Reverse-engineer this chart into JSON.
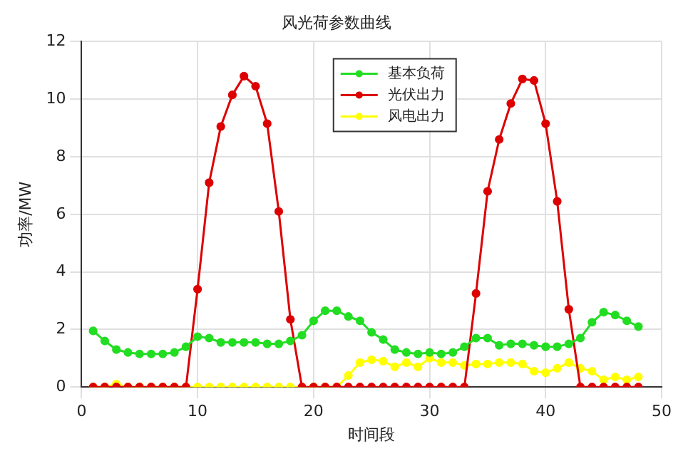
{
  "chart_data": {
    "type": "line",
    "title": "风光荷参数曲线",
    "xlabel": "时间段",
    "ylabel": "功率/MW",
    "x": [
      1,
      2,
      3,
      4,
      5,
      6,
      7,
      8,
      9,
      10,
      11,
      12,
      13,
      14,
      15,
      16,
      17,
      18,
      19,
      20,
      21,
      22,
      23,
      24,
      25,
      26,
      27,
      28,
      29,
      30,
      31,
      32,
      33,
      34,
      35,
      36,
      37,
      38,
      39,
      40,
      41,
      42,
      43,
      44,
      45,
      46,
      47,
      48
    ],
    "series": [
      {
        "name": "基本负荷",
        "color": "#22dd22",
        "values": [
          1.95,
          1.6,
          1.3,
          1.2,
          1.15,
          1.15,
          1.15,
          1.2,
          1.4,
          1.75,
          1.7,
          1.55,
          1.55,
          1.55,
          1.55,
          1.5,
          1.5,
          1.6,
          1.8,
          2.3,
          2.65,
          2.65,
          2.45,
          2.3,
          1.9,
          1.65,
          1.3,
          1.2,
          1.15,
          1.2,
          1.15,
          1.2,
          1.4,
          1.7,
          1.7,
          1.45,
          1.5,
          1.5,
          1.45,
          1.4,
          1.4,
          1.5,
          1.7,
          2.25,
          2.6,
          2.5,
          2.3,
          2.1
        ]
      },
      {
        "name": "光伏出力",
        "color": "#dd0000",
        "values": [
          0,
          0,
          0,
          0,
          0,
          0,
          0,
          0,
          0,
          3.4,
          7.1,
          9.05,
          10.15,
          10.8,
          10.45,
          9.15,
          6.1,
          2.35,
          0,
          0,
          0,
          0,
          0,
          0,
          0,
          0,
          0,
          0,
          0,
          0,
          0,
          0,
          0,
          3.25,
          6.8,
          8.6,
          9.85,
          10.7,
          10.65,
          9.15,
          6.45,
          2.7,
          0,
          0,
          0,
          0,
          0,
          0
        ]
      },
      {
        "name": "风电出力",
        "color": "#ffff00",
        "values": [
          0,
          0,
          0.1,
          0,
          0,
          0,
          0,
          0,
          0,
          0,
          0,
          0,
          0,
          0,
          0,
          0,
          0,
          0,
          0,
          0,
          0,
          0,
          0.4,
          0.85,
          0.95,
          0.9,
          0.7,
          0.85,
          0.7,
          1.0,
          0.85,
          0.85,
          0.75,
          0.8,
          0.8,
          0.85,
          0.85,
          0.8,
          0.55,
          0.5,
          0.65,
          0.85,
          0.65,
          0.55,
          0.25,
          0.35,
          0.25,
          0.35
        ]
      }
    ],
    "xlim": [
      0,
      50
    ],
    "xticks": [
      0,
      10,
      20,
      30,
      40,
      50
    ],
    "ylim": [
      0,
      12
    ],
    "yticks": [
      0,
      2,
      4,
      6,
      8,
      10,
      12
    ],
    "grid": true,
    "legend": "top",
    "marker": "circle",
    "line_style": "solid"
  }
}
